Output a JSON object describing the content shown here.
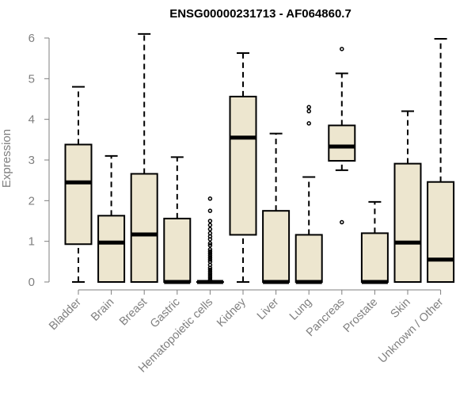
{
  "chart_data": {
    "type": "boxplot",
    "title": "ENSG00000231713 - AF064860.7",
    "xlabel": "",
    "ylabel": "Expression",
    "ylim": [
      0,
      6.2
    ],
    "yticks": [
      0,
      1,
      2,
      3,
      4,
      5,
      6
    ],
    "grid": false,
    "legend": "none",
    "colors": {
      "box_fill": "#ede6cf",
      "stroke": "#000000",
      "axis_text": "#7f7f7f"
    },
    "categories": [
      "Bladder",
      "Brain",
      "Breast",
      "Gastric",
      "Hematopoietic cells",
      "Kidney",
      "Liver",
      "Lung",
      "Pancreas",
      "Prostate",
      "Skin",
      "Unknown / Other"
    ],
    "boxes": [
      {
        "category": "Bladder",
        "whisker_low": 0,
        "q1": 0.93,
        "median": 2.45,
        "q3": 3.38,
        "whisker_high": 4.8,
        "outliers": []
      },
      {
        "category": "Brain",
        "whisker_low": 0,
        "q1": 0,
        "median": 0.97,
        "q3": 1.63,
        "whisker_high": 3.1,
        "outliers": []
      },
      {
        "category": "Breast",
        "whisker_low": 0,
        "q1": 0,
        "median": 1.17,
        "q3": 2.66,
        "whisker_high": 6.1,
        "outliers": []
      },
      {
        "category": "Gastric",
        "whisker_low": 0,
        "q1": 0,
        "median": 0,
        "q3": 1.56,
        "whisker_high": 3.07,
        "outliers": []
      },
      {
        "category": "Hematopoietic cells",
        "whisker_low": 0,
        "q1": 0,
        "median": 0,
        "q3": 0,
        "whisker_high": 0,
        "outliers": [
          0.05,
          0.1,
          0.15,
          0.2,
          0.25,
          0.3,
          0.35,
          0.42,
          0.5,
          0.55,
          0.6,
          0.65,
          0.7,
          0.75,
          0.8,
          0.9,
          0.95,
          1.05,
          1.12,
          1.2,
          1.3,
          1.4,
          1.5,
          1.75,
          2.05
        ]
      },
      {
        "category": "Kidney",
        "whisker_low": 0,
        "q1": 1.16,
        "median": 3.55,
        "q3": 4.56,
        "whisker_high": 5.63,
        "outliers": []
      },
      {
        "category": "Liver",
        "whisker_low": 0,
        "q1": 0,
        "median": 0,
        "q3": 1.75,
        "whisker_high": 3.65,
        "outliers": []
      },
      {
        "category": "Lung",
        "whisker_low": 0,
        "q1": 0,
        "median": 0,
        "q3": 1.16,
        "whisker_high": 2.58,
        "outliers": [
          3.9,
          4.2,
          4.3
        ]
      },
      {
        "category": "Pancreas",
        "whisker_low": 2.75,
        "q1": 2.98,
        "median": 3.33,
        "q3": 3.85,
        "whisker_high": 5.13,
        "outliers": [
          5.73,
          1.47
        ]
      },
      {
        "category": "Prostate",
        "whisker_low": 0,
        "q1": 0,
        "median": 0,
        "q3": 1.2,
        "whisker_high": 1.97,
        "outliers": []
      },
      {
        "category": "Skin",
        "whisker_low": 0,
        "q1": 0,
        "median": 0.97,
        "q3": 2.91,
        "whisker_high": 4.2,
        "outliers": []
      },
      {
        "category": "Unknown / Other",
        "whisker_low": 0,
        "q1": 0,
        "median": 0.55,
        "q3": 2.46,
        "whisker_high": 5.98,
        "outliers": []
      }
    ]
  }
}
